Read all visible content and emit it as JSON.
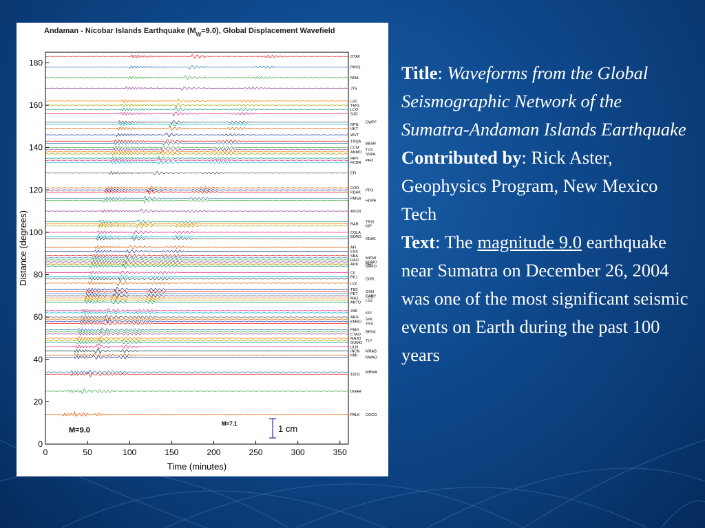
{
  "slide": {
    "title_label": "Title",
    "title_text": "Waveforms from the Global Seismographic Network of the Sumatra-Andaman Islands Earthquake",
    "contributed_label": "Contributed by",
    "contributed_text": "Rick Aster, Geophysics Program, New Mexico Tech",
    "text_label": "Text",
    "text_prefix": "The",
    "text_link": "magnitude 9.0",
    "text_body": "earthquake near Sumatra on December 26, 2004 was one of the most significant seismic events on Earth during the past 100 years"
  },
  "colors": {
    "accent": "#0f4a8e",
    "text": "#ffffff",
    "traces": [
      "#e41a1c",
      "#377eb8",
      "#4daf4a",
      "#984ea3",
      "#ff7f00",
      "#a6a600",
      "#1b9e77",
      "#e7298a",
      "#00bcd4",
      "#555555",
      "#d95f02",
      "#2c3e9e"
    ]
  },
  "chart_data": {
    "type": "line",
    "title_main": "Andaman - Nicobar Islands Earthquake (M",
    "title_sub": "W",
    "title_end": "=9.0), Global Displacement Wavefield",
    "xlabel": "Time (minutes)",
    "ylabel": "Distance (degrees)",
    "xlim": [
      0,
      360
    ],
    "ylim": [
      0,
      185
    ],
    "xticks": [
      0,
      50,
      100,
      150,
      200,
      250,
      300,
      350
    ],
    "yticks": [
      0,
      20,
      40,
      60,
      80,
      100,
      120,
      140,
      160,
      180
    ],
    "annotations": {
      "main_event": "M=9.0",
      "aftershock": "M=7.1",
      "scale_bar": "1 cm"
    },
    "stations": [
      {
        "name": "OTAV",
        "distance": 183
      },
      {
        "name": "PAYG",
        "distance": 178
      },
      {
        "name": "NNA",
        "distance": 173
      },
      {
        "name": "JTS",
        "distance": 168
      },
      {
        "name": "LVC",
        "distance": 162
      },
      {
        "name": "TEIG",
        "distance": 160
      },
      {
        "name": "LCO",
        "distance": 158
      },
      {
        "name": "SJG",
        "distance": 156
      },
      {
        "name": "RPN",
        "distance": 151
      },
      {
        "name": "DWPF",
        "distance": 152
      },
      {
        "name": "HKT",
        "distance": 149
      },
      {
        "name": "WVT",
        "distance": 146
      },
      {
        "name": "TRQA",
        "distance": 143
      },
      {
        "name": "BBSR",
        "distance": 142
      },
      {
        "name": "CCM",
        "distance": 140
      },
      {
        "name": "TUC",
        "distance": 139
      },
      {
        "name": "ANMO",
        "distance": 138
      },
      {
        "name": "SSPA",
        "distance": 137
      },
      {
        "name": "HRV",
        "distance": 135
      },
      {
        "name": "PFO",
        "distance": 134
      },
      {
        "name": "RCBR",
        "distance": 133
      },
      {
        "name": "EFI",
        "distance": 128
      },
      {
        "name": "COR",
        "distance": 121
      },
      {
        "name": "PFO",
        "distance": 120
      },
      {
        "name": "KDAK",
        "distance": 119
      },
      {
        "name": "PMSA",
        "distance": 116
      },
      {
        "name": "HOPE",
        "distance": 115
      },
      {
        "name": "ASCN",
        "distance": 110
      },
      {
        "name": "RAR",
        "distance": 104
      },
      {
        "name": "KIP",
        "distance": 103
      },
      {
        "name": "TRIS",
        "distance": 105
      },
      {
        "name": "COLA",
        "distance": 100
      },
      {
        "name": "BORG",
        "distance": 98
      },
      {
        "name": "KDAK",
        "distance": 97
      },
      {
        "name": "AFI",
        "distance": 93
      },
      {
        "name": "ESK",
        "distance": 91
      },
      {
        "name": "SBA",
        "distance": 89
      },
      {
        "name": "MIDW",
        "distance": 88
      },
      {
        "name": "RAO",
        "distance": 87
      },
      {
        "name": "KONO",
        "distance": 86
      },
      {
        "name": "ADK",
        "distance": 85
      },
      {
        "name": "BFO",
        "distance": 85
      },
      {
        "name": "GRFO",
        "distance": 84
      },
      {
        "name": "CII",
        "distance": 81
      },
      {
        "name": "BILL",
        "distance": 79
      },
      {
        "name": "DGR",
        "distance": 78
      },
      {
        "name": "LVZ",
        "distance": 76
      },
      {
        "name": "TBS",
        "distance": 73
      },
      {
        "name": "GSN",
        "distance": 72
      },
      {
        "name": "PET",
        "distance": 71
      },
      {
        "name": "CADY",
        "distance": 70
      },
      {
        "name": "CAN",
        "distance": 70
      },
      {
        "name": "MAJ",
        "distance": 69
      },
      {
        "name": "LSZ",
        "distance": 68
      },
      {
        "name": "ANTO",
        "distance": 67
      },
      {
        "name": "YAK",
        "distance": 63
      },
      {
        "name": "KIV",
        "distance": 62
      },
      {
        "name": "ARU",
        "distance": 60
      },
      {
        "name": "GNI",
        "distance": 59
      },
      {
        "name": "KMBO",
        "distance": 58
      },
      {
        "name": "YSS",
        "distance": 57
      },
      {
        "name": "PMG",
        "distance": 54
      },
      {
        "name": "BRVK",
        "distance": 53
      },
      {
        "name": "CTAO",
        "distance": 52
      },
      {
        "name": "MAJO",
        "distance": 50
      },
      {
        "name": "TLY",
        "distance": 49
      },
      {
        "name": "GUMO",
        "distance": 48
      },
      {
        "name": "ULN",
        "distance": 46
      },
      {
        "name": "INCN",
        "distance": 44
      },
      {
        "name": "MRAB",
        "distance": 44
      },
      {
        "name": "KMI",
        "distance": 42
      },
      {
        "name": "NWAO",
        "distance": 41
      },
      {
        "name": "TATO",
        "distance": 33
      },
      {
        "name": "MBWA",
        "distance": 34
      },
      {
        "name": "DGAR",
        "distance": 25
      },
      {
        "name": "PALK",
        "distance": 14
      },
      {
        "name": "COCO",
        "distance": 14
      }
    ]
  }
}
